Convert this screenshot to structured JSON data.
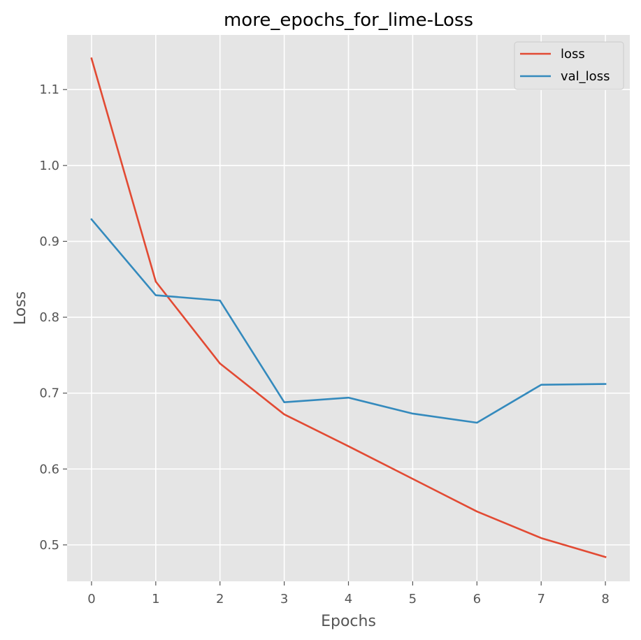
{
  "chart_data": {
    "type": "line",
    "title": "more_epochs_for_lime-Loss",
    "xlabel": "Epochs",
    "ylabel": "Loss",
    "x": [
      0,
      1,
      2,
      3,
      4,
      5,
      6,
      7,
      8
    ],
    "xlim": [
      -0.38,
      8.38
    ],
    "ylim": [
      0.452,
      1.172
    ],
    "xticks": [
      0,
      1,
      2,
      3,
      4,
      5,
      6,
      7,
      8
    ],
    "xtick_labels": [
      "0",
      "1",
      "2",
      "3",
      "4",
      "5",
      "6",
      "7",
      "8"
    ],
    "yticks": [
      0.5,
      0.6,
      0.7,
      0.8,
      0.9,
      1.0,
      1.1
    ],
    "ytick_labels": [
      "0.5",
      "0.6",
      "0.7",
      "0.8",
      "0.9",
      "1.0",
      "1.1"
    ],
    "grid": true,
    "legend_position": "top-right",
    "series": [
      {
        "name": "loss",
        "color": "#E24A33",
        "values": [
          1.141,
          0.847,
          0.739,
          0.672,
          0.63,
          0.587,
          0.544,
          0.509,
          0.484
        ]
      },
      {
        "name": "val_loss",
        "color": "#348ABD",
        "values": [
          0.929,
          0.829,
          0.822,
          0.688,
          0.694,
          0.673,
          0.661,
          0.711,
          0.712
        ]
      }
    ]
  }
}
